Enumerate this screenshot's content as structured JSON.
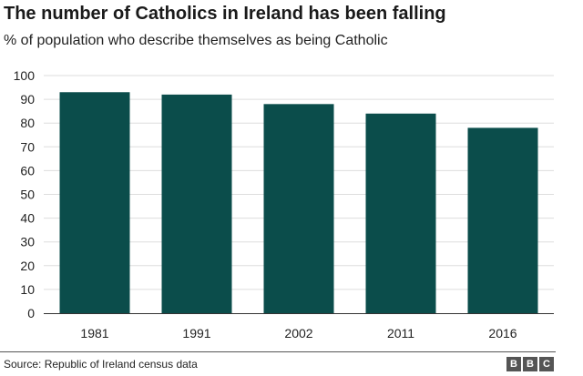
{
  "header": {
    "title": "The number of Catholics in Ireland has been falling",
    "subtitle": "% of population who describe themselves as being Catholic"
  },
  "footer": {
    "source": "Source: Republic of Ireland census data",
    "logo": "BBC"
  },
  "colors": {
    "bar": "#0b4d4b",
    "grid": "#dddddd",
    "axis": "#333333"
  },
  "chart_data": {
    "type": "bar",
    "categories": [
      "1981",
      "1991",
      "2002",
      "2011",
      "2016"
    ],
    "values": [
      93,
      92,
      88,
      84,
      78
    ],
    "ylim": [
      0,
      100
    ],
    "yticks": [
      0,
      10,
      20,
      30,
      40,
      50,
      60,
      70,
      80,
      90,
      100
    ],
    "grid": true,
    "legend": "none"
  }
}
